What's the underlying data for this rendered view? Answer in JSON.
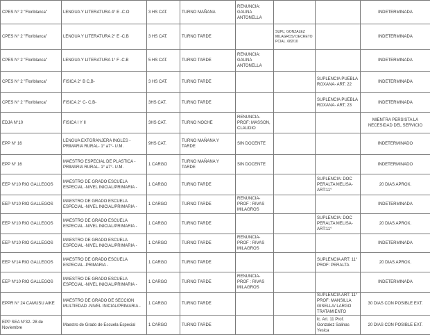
{
  "rows": [
    {
      "school": "CPES N° 2 \"Floriblanca\"",
      "subject": "LENGUA Y  LITERATURA 4° E -C.O",
      "hours": "3 HS CAT.",
      "shift": "TURNO MAÑANA",
      "reason": "RENUNCIA: GAUNA ANTONELLA",
      "decree": "",
      "suplencia": "",
      "duration": "INDETERMINADA"
    },
    {
      "school": "CPES N° 2 \"Floriblanca\"",
      "subject": "LENGUA Y  LITERATURA 2° E -C.B",
      "hours": "3 HS CAT.",
      "shift": "TURNO TARDE",
      "reason": "",
      "decree": "SUPL; GONZALEZ MILAGROS/ DECRETO PCIAL. 682/10",
      "suplencia": "",
      "duration": "INDETERMINADA"
    },
    {
      "school": "CPES N° 2 \"Floriblanca\"",
      "subject": "LENGUA Y  LITERATURA 1° F -C.B",
      "hours": "5 HS CAT.",
      "shift": "TURNO TARDE",
      "reason": "RENUNCIA: GAUNA ANTONELLA",
      "decree": "",
      "suplencia": "",
      "duration": "INDETERMINADA"
    },
    {
      "school": "CPES N° 2 \"Floriblanca\"",
      "subject": "FISICA 2° B C,B-",
      "hours": "3 HS CAT.",
      "shift": "TURNO TARDE",
      "reason": "",
      "decree": "",
      "suplencia": "SUPLENCIA PUEBLA ROXANA- ART; 22",
      "duration": "INDETERMINADA"
    },
    {
      "school": "CPES N° 2 \"Floriblanca\"",
      "subject": "FISICA 2° C- C,B-",
      "hours": "3HS CAT.",
      "shift": "TURNO TARDE",
      "reason": "",
      "decree": "",
      "suplencia": "SUPLENCIA PUEBLA ROXANA- ART; 23",
      "duration": "INDETERMINADA"
    },
    {
      "school": "EDJA N°10",
      "subject": "FISICA I Y II",
      "hours": "3HS CAT.",
      "shift": "TURNO NOCHE",
      "reason": "RENUNCIA- PROF: MASSON, CLAUDIO",
      "decree": "",
      "suplencia": "",
      "duration": "MIENTRA PERSISTA LA NECESIDAD DEL SERVICIO"
    },
    {
      "school": "EPP N° 16",
      "subject": "LENGUA EXTGRANJERA INGLES -PRIMARIA RURAL- 1° a7°- U.M.",
      "hours": "9HS CAT.",
      "shift": "TURNO MAÑANA Y TARDE",
      "reason": "SIN DOCENTE",
      "decree": "",
      "suplencia": "",
      "duration": "INDETERMINADO"
    },
    {
      "school": "EPP N° 16",
      "subject": "MAESTRO ESPECIAL DE PLASTICA -PRIMARIA RURAL- 1° a7°- U.M.",
      "hours": "1 CARGO",
      "shift": "TURNO MAÑANA Y TARDE",
      "reason": "SIN DOCENTE",
      "decree": "",
      "suplencia": "",
      "duration": "INDETERMINADO"
    },
    {
      "school": "EEP N°10 RIO GALLEGOS",
      "subject": "MAESTRO DE GRADO ESCUELA ESPECIAL -NIVEL INICIAL/PRIMARIA -",
      "hours": "1 CARGO",
      "shift": "TURNO TARDE",
      "reason": "",
      "decree": "",
      "suplencia": "SUPLENCIA: DOC PERALTA MELISA- ART:11°",
      "duration": "20 DIAS APROX."
    },
    {
      "school": "EEP N°10 RIO GALLEGOS",
      "subject": "MAESTRO DE GRADO ESCUELA ESPECIAL -NIVEL INICIAL/PRIMARIA -",
      "hours": "1 CARGO",
      "shift": "TURNO TARDE",
      "reason": "RENUNCIA- PROF : RIVAS MILAGROS",
      "decree": "",
      "suplencia": "",
      "duration": "INDETERMINADA"
    },
    {
      "school": "EEP N°10 RIO GALLEGOS",
      "subject": "MAESTRO DE GRADO ESCUELA ESPECIAL -NIVEL INICIAL/PRIMARIA -",
      "hours": "1 CARGO",
      "shift": "TURNO TARDE",
      "reason": "",
      "decree": "",
      "suplencia": "SUPLENCIA: DOC PERALTA MELISA- ART:11°",
      "duration": "20 DIAS APROX."
    },
    {
      "school": "EEP N°10 RIO GALLEGOS",
      "subject": "MAESTRO DE GRADO ESCUELA ESPECIAL -NIVEL INICIAL/PRIMARIA -",
      "hours": "1 CARGO",
      "shift": "TURNO TARDE",
      "reason": "RENUNCIA- PROF : RIVAS MILAGROS",
      "decree": "",
      "suplencia": "",
      "duration": "INDETERMINADA"
    },
    {
      "school": "EEP N°14 RIO GALLEGOS",
      "subject": "MAESTRO DE GRADO ESCUELA ESPECIAL -PRIMARIA -",
      "hours": "1 CARGO",
      "shift": "TURNO TARDE",
      "reason": "",
      "decree": "",
      "suplencia": "SUPLENCIA ART: 11° PROF: PERALTA",
      "duration": "20 DIAS APROX."
    },
    {
      "school": "EEP N°10 RIO GALLEGOS",
      "subject": "MAESTRO DE GRADO ESCUELA ESPECIAL -NIVEL INICIAL/PRIMARIA -",
      "hours": "1 CARGO",
      "shift": "TURNO TARDE",
      "reason": "RENUNCIA- PROF : RIVAS MILAGROS",
      "decree": "",
      "suplencia": "",
      "duration": "INDETERMINADA"
    },
    {
      "school": "EPPR N° 24 CAMUSU AIKE",
      "subject": "MAESTRO DE GRADO DE SECCION MULTIEDAD  -NIVEL INICIAL/PRIMARIA -",
      "hours": "1 CARGO",
      "shift": "TURNO TARDE",
      "reason": "",
      "decree": "",
      "suplencia": "SUPLENCIA ART: 11° PROF: MANSILLA GISELLA/ LARGO TRATAMIENTO",
      "duration": "30 DIAS CON POSIBLE EXT."
    },
    {
      "school": "EPP SEA N°32- 28 de Noviembre",
      "subject": "Maestro de Grado de Escuela Especial",
      "hours": "1 CARGO",
      "shift": "TURNO TARDE",
      "reason": "",
      "decree": "",
      "suplencia": "lc. Art. 11 Prof. Gonzalez Salinas Yesica",
      "duration": "20 DIAS CON POSIBLE EXT."
    }
  ]
}
